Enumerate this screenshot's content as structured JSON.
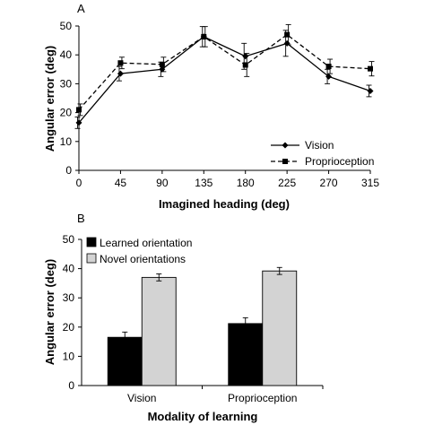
{
  "chart_data": [
    {
      "panel_label": "A",
      "type": "line",
      "xlabel": "Imagined heading (deg)",
      "ylabel": "Angular error (deg)",
      "x": [
        0,
        45,
        90,
        135,
        180,
        225,
        270,
        315
      ],
      "xlim": [
        0,
        315
      ],
      "ylim": [
        0,
        50
      ],
      "yticks": [
        0,
        10,
        20,
        30,
        40,
        50
      ],
      "grid": false,
      "legend": "lower-right",
      "series": [
        {
          "name": "Vision",
          "marker": "diamond",
          "line": "solid",
          "values": [
            16.5,
            33.5,
            35,
            46.3,
            39.5,
            44,
            32.5,
            27.5
          ],
          "errors": [
            2,
            2.5,
            2.5,
            3.5,
            4.5,
            4.5,
            2.5,
            2
          ]
        },
        {
          "name": "Proprioception",
          "marker": "square",
          "line": "dashed",
          "values": [
            21,
            37.2,
            36.7,
            46.3,
            36.5,
            47,
            36,
            35.2
          ],
          "errors": [
            2,
            2,
            2.5,
            3.5,
            4,
            3.5,
            2.5,
            2.5
          ]
        }
      ]
    },
    {
      "panel_label": "B",
      "type": "bar",
      "xlabel": "Modality of learning",
      "ylabel": "Angular error (deg)",
      "categories": [
        "Vision",
        "Proprioception"
      ],
      "ylim": [
        0,
        50
      ],
      "yticks": [
        0,
        10,
        20,
        30,
        40,
        50
      ],
      "grid": false,
      "legend": "top-left",
      "series": [
        {
          "name": "Learned orientation",
          "color": "#000000",
          "values": [
            16.5,
            21.2
          ],
          "errors": [
            1.8,
            2
          ]
        },
        {
          "name": "Novel orientations",
          "color": "#d3d3d3",
          "values": [
            37,
            39.2
          ],
          "errors": [
            1.2,
            1.2
          ]
        }
      ]
    }
  ]
}
